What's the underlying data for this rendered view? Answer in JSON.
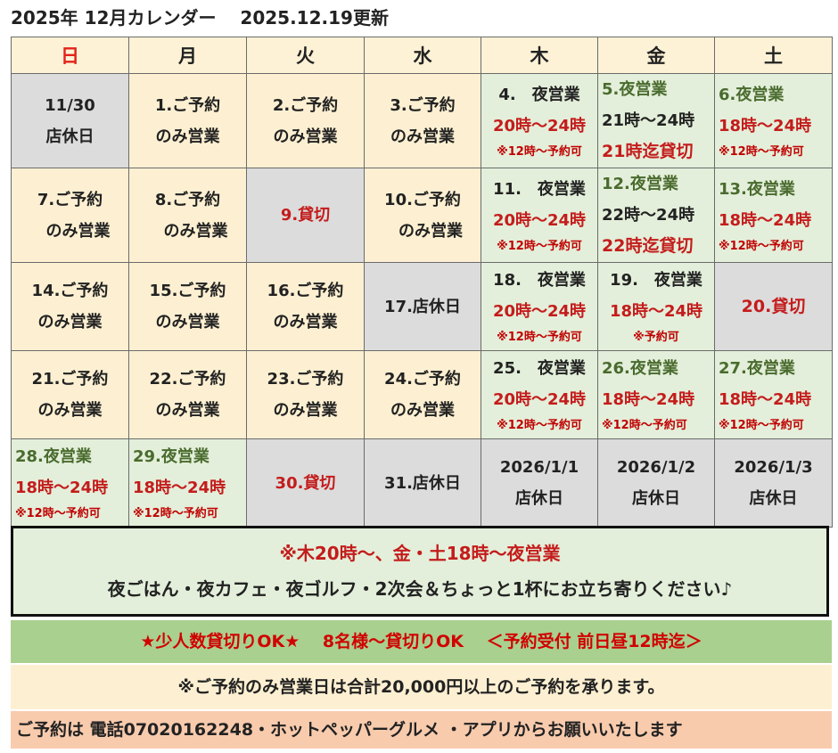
{
  "title": "2025年 12月カレンダー　 2025.12.19更新",
  "days": [
    "日",
    "月",
    "火",
    "水",
    "木",
    "金",
    "土"
  ],
  "colors": {
    "yellow": "#fdf0d2",
    "gray": "#dcdcdc",
    "green": "#e3efda",
    "red": "#c41c1c",
    "dark_green": "#4a6b2e"
  },
  "weeks": [
    [
      {
        "bg": "gray",
        "style": "center",
        "lines": [
          {
            "t": "11/30",
            "c": "plain"
          },
          {
            "t": "店休日",
            "c": "plain"
          }
        ]
      },
      {
        "bg": "yellow",
        "style": "center",
        "lines": [
          {
            "t": "1.ご予約",
            "c": "plain"
          },
          {
            "t": "のみ営業",
            "c": "plain"
          }
        ]
      },
      {
        "bg": "yellow",
        "style": "center",
        "lines": [
          {
            "t": "2.ご予約",
            "c": "plain"
          },
          {
            "t": "のみ営業",
            "c": "plain"
          }
        ]
      },
      {
        "bg": "yellow",
        "style": "center",
        "lines": [
          {
            "t": "3.ご予約",
            "c": "plain"
          },
          {
            "t": "のみ営業",
            "c": "plain"
          }
        ]
      },
      {
        "bg": "green",
        "style": "center",
        "lines": [
          {
            "t": "4.　夜営業",
            "c": "plain"
          },
          {
            "t": "20時～24時",
            "c": "red"
          },
          {
            "t": "※12時～予約可",
            "c": "note"
          }
        ]
      },
      {
        "bg": "green",
        "style": "left",
        "lines": [
          {
            "t": "5.夜営業",
            "c": "dgreen"
          },
          {
            "t": "21時～24時",
            "c": "plain"
          },
          {
            "t": "21時迄貸切",
            "c": "red big"
          }
        ]
      },
      {
        "bg": "green",
        "style": "left",
        "lines": [
          {
            "t": "6.夜営業",
            "c": "dgreen"
          },
          {
            "t": "18時～24時",
            "c": "red"
          },
          {
            "t": "※12時～予約可",
            "c": "note"
          }
        ]
      }
    ],
    [
      {
        "bg": "yellow",
        "style": "center",
        "lines": [
          {
            "t": "7.ご予約",
            "c": "plain"
          },
          {
            "t": "　のみ営業",
            "c": "plain"
          }
        ]
      },
      {
        "bg": "yellow",
        "style": "center",
        "lines": [
          {
            "t": "8.ご予約",
            "c": "plain"
          },
          {
            "t": "　のみ営業",
            "c": "plain"
          }
        ]
      },
      {
        "bg": "gray",
        "style": "center",
        "lines": [
          {
            "t": "9.貸切",
            "c": "red"
          }
        ]
      },
      {
        "bg": "yellow",
        "style": "center",
        "lines": [
          {
            "t": "10.ご予約",
            "c": "plain"
          },
          {
            "t": "　のみ営業",
            "c": "plain"
          }
        ]
      },
      {
        "bg": "green",
        "style": "center",
        "lines": [
          {
            "t": "11.　夜営業",
            "c": "plain"
          },
          {
            "t": "20時～24時",
            "c": "red"
          },
          {
            "t": "※12時～予約可",
            "c": "note"
          }
        ]
      },
      {
        "bg": "green",
        "style": "left",
        "lines": [
          {
            "t": "12.夜営業",
            "c": "dgreen"
          },
          {
            "t": "22時～24時",
            "c": "plain"
          },
          {
            "t": "22時迄貸切",
            "c": "red big"
          }
        ]
      },
      {
        "bg": "green",
        "style": "left",
        "lines": [
          {
            "t": "13.夜営業",
            "c": "dgreen"
          },
          {
            "t": "18時～24時",
            "c": "red"
          },
          {
            "t": "※12時～予約可",
            "c": "note"
          }
        ]
      }
    ],
    [
      {
        "bg": "yellow",
        "style": "center",
        "lines": [
          {
            "t": "14.ご予約",
            "c": "plain"
          },
          {
            "t": "のみ営業",
            "c": "plain"
          }
        ]
      },
      {
        "bg": "yellow",
        "style": "center",
        "lines": [
          {
            "t": "15.ご予約",
            "c": "plain"
          },
          {
            "t": "のみ営業",
            "c": "plain"
          }
        ]
      },
      {
        "bg": "yellow",
        "style": "center",
        "lines": [
          {
            "t": "16.ご予約",
            "c": "plain"
          },
          {
            "t": "のみ営業",
            "c": "plain"
          }
        ]
      },
      {
        "bg": "gray",
        "style": "center",
        "lines": [
          {
            "t": "17.店休日",
            "c": "plain"
          }
        ]
      },
      {
        "bg": "green",
        "style": "center",
        "lines": [
          {
            "t": "18.　夜営業",
            "c": "plain"
          },
          {
            "t": "20時～24時",
            "c": "red"
          },
          {
            "t": "※12時～予約可",
            "c": "note"
          }
        ]
      },
      {
        "bg": "green",
        "style": "center",
        "lines": [
          {
            "t": "19.　夜営業",
            "c": "plain"
          },
          {
            "t": "18時～24時",
            "c": "red"
          },
          {
            "t": "※予約可",
            "c": "note"
          }
        ]
      },
      {
        "bg": "gray",
        "style": "center",
        "lines": [
          {
            "t": "20.貸切",
            "c": "red big"
          }
        ]
      }
    ],
    [
      {
        "bg": "yellow",
        "style": "center",
        "lines": [
          {
            "t": "21.ご予約",
            "c": "plain"
          },
          {
            "t": "のみ営業",
            "c": "plain"
          }
        ]
      },
      {
        "bg": "yellow",
        "style": "center",
        "lines": [
          {
            "t": "22.ご予約",
            "c": "plain"
          },
          {
            "t": "のみ営業",
            "c": "plain"
          }
        ]
      },
      {
        "bg": "yellow",
        "style": "center",
        "lines": [
          {
            "t": "23.ご予約",
            "c": "plain"
          },
          {
            "t": "のみ営業",
            "c": "plain"
          }
        ]
      },
      {
        "bg": "yellow",
        "style": "center",
        "lines": [
          {
            "t": "24.ご予約",
            "c": "plain"
          },
          {
            "t": "のみ営業",
            "c": "plain"
          }
        ]
      },
      {
        "bg": "green",
        "style": "center",
        "lines": [
          {
            "t": "25.　夜営業",
            "c": "plain"
          },
          {
            "t": "20時～24時",
            "c": "red"
          },
          {
            "t": "※12時～予約可",
            "c": "note"
          }
        ]
      },
      {
        "bg": "green",
        "style": "left",
        "lines": [
          {
            "t": "26.夜営業",
            "c": "dgreen"
          },
          {
            "t": "18時～24時",
            "c": "red"
          },
          {
            "t": "※12時～予約可",
            "c": "note"
          }
        ]
      },
      {
        "bg": "green",
        "style": "left",
        "lines": [
          {
            "t": "27.夜営業",
            "c": "dgreen"
          },
          {
            "t": "18時～24時",
            "c": "red"
          },
          {
            "t": "※12時～予約可",
            "c": "note"
          }
        ]
      }
    ],
    [
      {
        "bg": "green",
        "style": "left",
        "lines": [
          {
            "t": "28.夜営業",
            "c": "dgreen"
          },
          {
            "t": "18時～24時",
            "c": "red"
          },
          {
            "t": "※12時～予約可",
            "c": "note"
          }
        ]
      },
      {
        "bg": "green",
        "style": "left",
        "lines": [
          {
            "t": "29.夜営業",
            "c": "dgreen"
          },
          {
            "t": "18時～24時",
            "c": "red"
          },
          {
            "t": "※12時～予約可",
            "c": "note"
          }
        ]
      },
      {
        "bg": "gray",
        "style": "center",
        "lines": [
          {
            "t": "30.貸切",
            "c": "red"
          }
        ]
      },
      {
        "bg": "gray",
        "style": "center",
        "lines": [
          {
            "t": "31.店休日",
            "c": "plain"
          }
        ]
      },
      {
        "bg": "gray",
        "style": "center",
        "lines": [
          {
            "t": "2026/1/1",
            "c": "plain"
          },
          {
            "t": "店休日",
            "c": "plain"
          }
        ]
      },
      {
        "bg": "gray",
        "style": "center",
        "lines": [
          {
            "t": "2026/1/2",
            "c": "plain"
          },
          {
            "t": "店休日",
            "c": "plain"
          }
        ]
      },
      {
        "bg": "gray",
        "style": "center",
        "lines": [
          {
            "t": "2026/1/3",
            "c": "plain"
          },
          {
            "t": "店休日",
            "c": "plain"
          }
        ]
      }
    ]
  ],
  "info": {
    "line1": "※木20時～、金・土18時～夜営業",
    "line2": "夜ごはん・夜カフェ・夜ゴルフ・2次会＆ちょっと1杯にお立ち寄りください♪"
  },
  "band2": "★少人数貸切りOK★　 8名様～貸切りOK　 ＜予約受付 前日昼12時迄＞",
  "band3": "※ご予約のみ営業日は合計20,000円以上のご予約を承ります。",
  "band4": "ご予約は 電話07020162248・ホットペッパーグルメ ・アプリからお願いいたします"
}
